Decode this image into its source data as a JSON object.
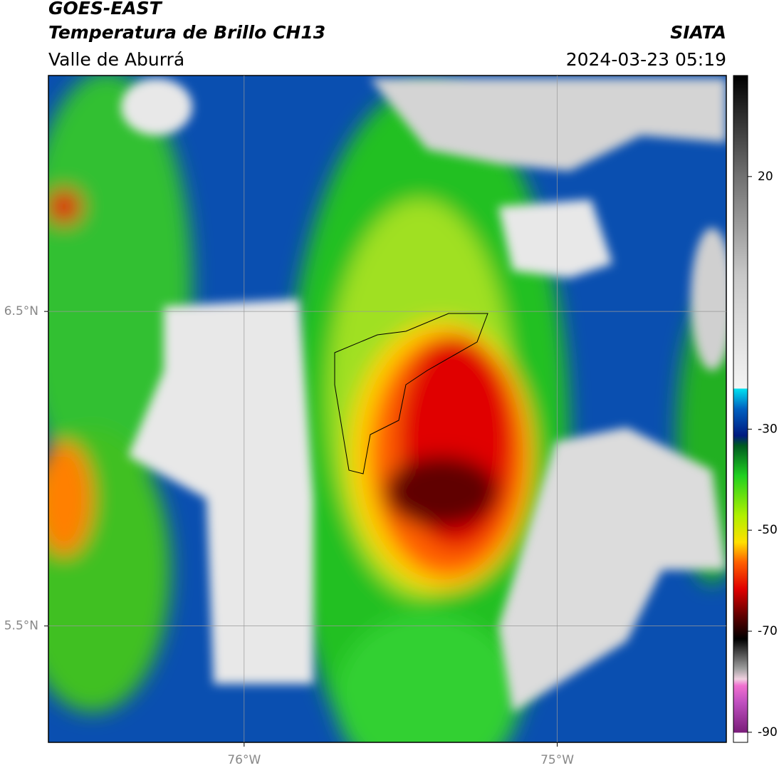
{
  "header": {
    "title": "GOES-EAST",
    "subtitle": "Temperatura de Brillo CH13",
    "region": "Valle de Aburrá",
    "source": "SIATA",
    "datetime": "2024-03-23 05:19"
  },
  "map": {
    "xlim": [
      -76.625,
      -74.46
    ],
    "ylim": [
      5.13,
      7.25
    ],
    "xticks": [
      {
        "value": -76,
        "label": "76°W"
      },
      {
        "value": -75,
        "label": "75°W"
      }
    ],
    "yticks": [
      {
        "value": 6.5,
        "label": "6.5°N"
      },
      {
        "value": 5.5,
        "label": "5.5°N"
      }
    ],
    "grid": true
  },
  "colorbar": {
    "lim": [
      -92,
      40
    ],
    "ticks": [
      20,
      -30,
      -50,
      -70,
      -90
    ]
  }
}
